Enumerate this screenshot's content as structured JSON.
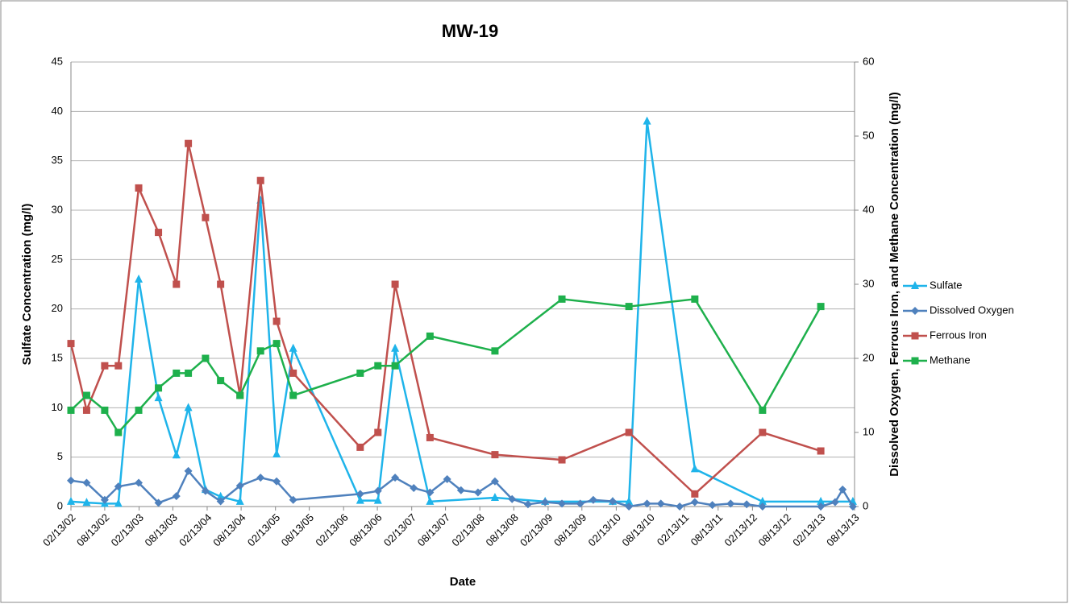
{
  "chart_data": {
    "type": "line",
    "title": "MW-19",
    "x_label": "Date",
    "y_label": "Sulfate Concentration (mg/l)",
    "y2_label": "Dissolved Oxygen, Ferrous Iron, and Methane Concentration (mg/l)",
    "xlim": [
      "02/13/02",
      "08/13/13"
    ],
    "xticks": [
      "02/13/02",
      "08/13/02",
      "02/13/03",
      "08/13/03",
      "02/13/04",
      "08/13/04",
      "02/13/05",
      "08/13/05",
      "02/13/06",
      "08/13/06",
      "02/13/07",
      "08/13/07",
      "02/13/08",
      "08/13/08",
      "02/13/09",
      "08/13/09",
      "02/13/10",
      "08/13/10",
      "02/13/11",
      "08/13/11",
      "02/13/12",
      "08/13/12",
      "02/13/13",
      "08/13/13"
    ],
    "ylim": [
      0,
      45
    ],
    "yticks": [
      0,
      5,
      10,
      15,
      20,
      25,
      30,
      35,
      40,
      45
    ],
    "y2lim": [
      0,
      60
    ],
    "y2ticks": [
      0,
      10,
      20,
      30,
      40,
      50,
      60
    ],
    "grid": true,
    "legend": "right",
    "series": [
      {
        "name": "Sulfate",
        "color": "#1fb4ea",
        "marker": "triangle",
        "axis": "y",
        "x": [
          "02/13/02",
          "05/08/02",
          "08/13/02",
          "10/25/02",
          "02/11/03",
          "05/28/03",
          "09/01/03",
          "11/04/03",
          "02/04/04",
          "04/25/04",
          "08/07/04",
          "11/25/04",
          "02/19/05",
          "05/19/05",
          "05/13/06",
          "08/16/06",
          "11/16/06",
          "05/22/07",
          "05/04/08",
          "01/28/09",
          "01/25/10",
          "04/22/10",
          "07/28/10",
          "04/10/11",
          "04/07/12",
          "02/13/13",
          "08/04/13"
        ],
        "values": [
          0.5,
          0.4,
          0.3,
          0.3,
          23,
          11,
          5.2,
          10,
          1.7,
          1.0,
          0.5,
          31,
          5.3,
          16,
          0.6,
          0.6,
          16,
          0.5,
          0.9,
          0.5,
          0.5,
          0.5,
          39,
          3.8,
          0.5,
          0.5,
          0.5
        ]
      },
      {
        "name": "Dissolved Oxygen",
        "color": "#4f81bd",
        "marker": "diamond",
        "axis": "y2",
        "x": [
          "02/13/02",
          "05/08/02",
          "08/13/02",
          "10/25/02",
          "02/11/03",
          "05/28/03",
          "09/01/03",
          "11/04/03",
          "02/04/04",
          "04/25/04",
          "08/07/04",
          "11/25/04",
          "02/19/05",
          "05/19/05",
          "05/13/06",
          "08/16/06",
          "11/16/06",
          "02/24/07",
          "05/22/07",
          "08/22/07",
          "11/04/07",
          "02/03/08",
          "05/04/08",
          "08/04/08",
          "10/28/08",
          "01/28/09",
          "04/28/09",
          "08/04/09",
          "10/13/09",
          "01/25/10",
          "04/22/10",
          "07/28/10",
          "10/10/10",
          "01/19/11",
          "04/10/11",
          "07/13/11",
          "10/19/11",
          "01/13/12",
          "04/07/12",
          "02/13/13",
          "05/01/13",
          "06/10/13",
          "08/04/13"
        ],
        "values": [
          3.5,
          3.2,
          0.9,
          2.7,
          3.2,
          0.5,
          1.4,
          4.8,
          2.1,
          0.7,
          2.8,
          3.9,
          3.4,
          0.9,
          1.7,
          2.1,
          3.9,
          2.5,
          1.9,
          3.7,
          2.2,
          1.9,
          3.4,
          1.0,
          0.3,
          0.6,
          0.4,
          0.4,
          0.9,
          0.7,
          0.0,
          0.4,
          0.4,
          0.0,
          0.6,
          0.2,
          0.4,
          0.3,
          0.0,
          0.0,
          0.6,
          2.3,
          0.0
        ]
      },
      {
        "name": "Ferrous Iron",
        "color": "#c0504d",
        "marker": "square",
        "axis": "y2",
        "x": [
          "02/13/02",
          "05/08/02",
          "08/13/02",
          "10/25/02",
          "02/11/03",
          "05/28/03",
          "09/01/03",
          "11/04/03",
          "02/04/04",
          "04/25/04",
          "08/07/04",
          "11/25/04",
          "02/19/05",
          "05/19/05",
          "05/13/06",
          "08/16/06",
          "11/16/06",
          "05/22/07",
          "05/04/08",
          "04/28/09",
          "04/22/10",
          "04/10/11",
          "04/07/12",
          "02/13/13"
        ],
        "values": [
          22,
          13,
          19,
          19,
          43,
          37,
          30,
          49,
          39,
          30,
          15,
          44,
          25,
          18,
          8,
          10,
          30,
          9.3,
          7,
          6.3,
          10,
          1.7,
          10,
          7.5
        ]
      },
      {
        "name": "Methane",
        "color": "#1eb04c",
        "marker": "square",
        "axis": "y2",
        "x": [
          "02/13/02",
          "05/08/02",
          "08/13/02",
          "10/25/02",
          "02/11/03",
          "05/28/03",
          "09/01/03",
          "11/04/03",
          "02/04/04",
          "04/25/04",
          "08/07/04",
          "11/25/04",
          "02/19/05",
          "05/19/05",
          "05/13/06",
          "08/16/06",
          "11/16/06",
          "05/22/07",
          "05/04/08",
          "04/28/09",
          "04/22/10",
          "04/10/11",
          "04/07/12",
          "02/13/13"
        ],
        "values": [
          13,
          15,
          13,
          10,
          13,
          16,
          18,
          18,
          20,
          17,
          15,
          21,
          22,
          15,
          18,
          19,
          19,
          23,
          21,
          28,
          27,
          28,
          13,
          27
        ]
      }
    ]
  }
}
